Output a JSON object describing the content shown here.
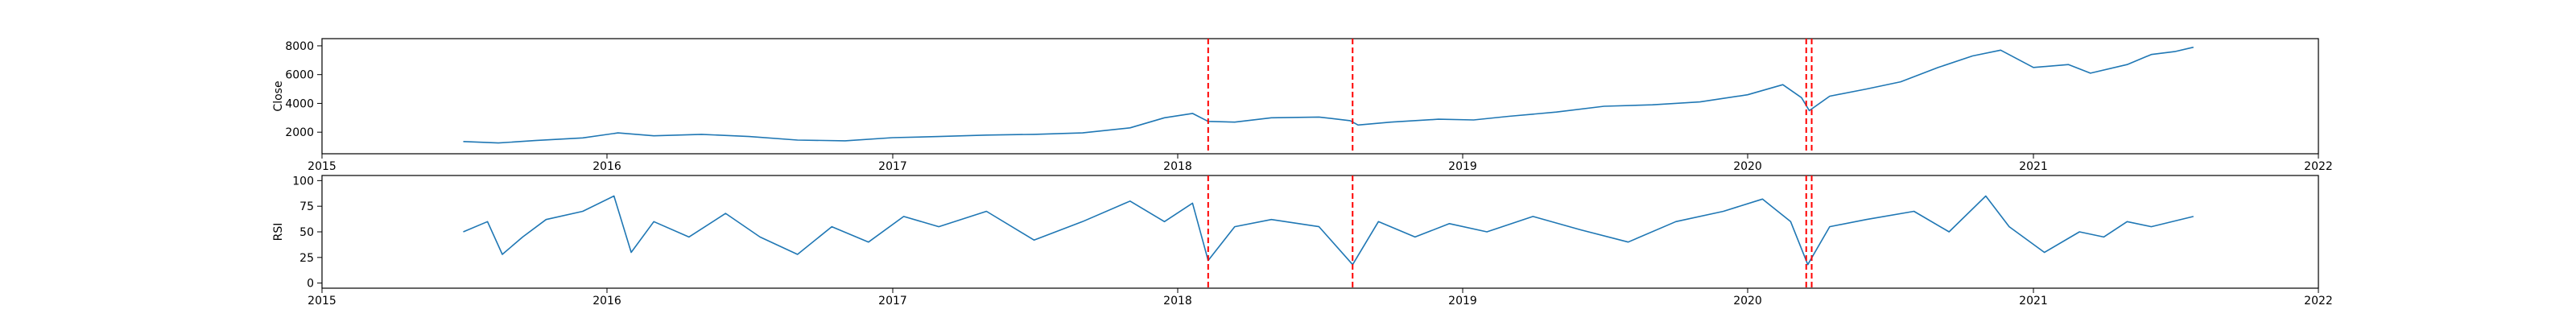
{
  "chart_data": [
    {
      "type": "line",
      "ylabel": "Close",
      "xlim": [
        "2015-01-01",
        "2022-01-01"
      ],
      "ylim": [
        500,
        8500
      ],
      "x_ticks": [
        "2015",
        "2016",
        "2017",
        "2018",
        "2019",
        "2020",
        "2021",
        "2022"
      ],
      "y_ticks": [
        2000,
        4000,
        6000,
        8000
      ],
      "grid": false,
      "series": [
        {
          "color": "#1f77b4",
          "points": [
            [
              "2015-07-01",
              1350
            ],
            [
              "2015-08-15",
              1250
            ],
            [
              "2015-10-01",
              1420
            ],
            [
              "2015-12-01",
              1600
            ],
            [
              "2016-01-15",
              1950
            ],
            [
              "2016-03-01",
              1750
            ],
            [
              "2016-05-01",
              1850
            ],
            [
              "2016-07-01",
              1700
            ],
            [
              "2016-09-01",
              1450
            ],
            [
              "2016-11-01",
              1400
            ],
            [
              "2017-01-01",
              1620
            ],
            [
              "2017-03-01",
              1700
            ],
            [
              "2017-05-01",
              1800
            ],
            [
              "2017-07-01",
              1850
            ],
            [
              "2017-09-01",
              1950
            ],
            [
              "2017-11-01",
              2300
            ],
            [
              "2017-12-15",
              3000
            ],
            [
              "2018-01-20",
              3300
            ],
            [
              "2018-02-09",
              2750
            ],
            [
              "2018-03-15",
              2700
            ],
            [
              "2018-05-01",
              3000
            ],
            [
              "2018-07-01",
              3050
            ],
            [
              "2018-08-10",
              2800
            ],
            [
              "2018-08-20",
              2500
            ],
            [
              "2018-10-01",
              2700
            ],
            [
              "2018-12-01",
              2900
            ],
            [
              "2019-01-15",
              2850
            ],
            [
              "2019-03-01",
              3100
            ],
            [
              "2019-05-01",
              3400
            ],
            [
              "2019-07-01",
              3800
            ],
            [
              "2019-09-01",
              3900
            ],
            [
              "2019-11-01",
              4100
            ],
            [
              "2020-01-01",
              4600
            ],
            [
              "2020-02-15",
              5300
            ],
            [
              "2020-03-10",
              4400
            ],
            [
              "2020-03-20",
              3500
            ],
            [
              "2020-04-15",
              4500
            ],
            [
              "2020-06-01",
              5000
            ],
            [
              "2020-07-15",
              5500
            ],
            [
              "2020-09-01",
              6500
            ],
            [
              "2020-10-15",
              7300
            ],
            [
              "2020-11-20",
              7700
            ],
            [
              "2021-01-01",
              6500
            ],
            [
              "2021-02-15",
              6700
            ],
            [
              "2021-03-15",
              6100
            ],
            [
              "2021-05-01",
              6700
            ],
            [
              "2021-06-01",
              7400
            ],
            [
              "2021-07-01",
              7600
            ],
            [
              "2021-07-25",
              7900
            ]
          ]
        }
      ],
      "markers": [
        "2018-02-09",
        "2018-08-13",
        "2020-03-16",
        "2020-03-23"
      ],
      "marker_color": "#ff0000"
    },
    {
      "type": "line",
      "ylabel": "RSI",
      "xlim": [
        "2015-01-01",
        "2022-01-01"
      ],
      "ylim": [
        -5,
        105
      ],
      "x_ticks": [
        "2015",
        "2016",
        "2017",
        "2018",
        "2019",
        "2020",
        "2021",
        "2022"
      ],
      "y_ticks": [
        0,
        25,
        50,
        75,
        100
      ],
      "grid": false,
      "series": [
        {
          "color": "#1f77b4",
          "points": [
            [
              "2015-07-01",
              50
            ],
            [
              "2015-08-01",
              60
            ],
            [
              "2015-08-20",
              28
            ],
            [
              "2015-09-15",
              45
            ],
            [
              "2015-10-15",
              62
            ],
            [
              "2015-12-01",
              70
            ],
            [
              "2016-01-10",
              85
            ],
            [
              "2016-02-01",
              30
            ],
            [
              "2016-03-01",
              60
            ],
            [
              "2016-04-15",
              45
            ],
            [
              "2016-06-01",
              68
            ],
            [
              "2016-07-15",
              45
            ],
            [
              "2016-09-01",
              28
            ],
            [
              "2016-10-15",
              55
            ],
            [
              "2016-12-01",
              40
            ],
            [
              "2017-01-15",
              65
            ],
            [
              "2017-03-01",
              55
            ],
            [
              "2017-05-01",
              70
            ],
            [
              "2017-07-01",
              42
            ],
            [
              "2017-09-01",
              60
            ],
            [
              "2017-11-01",
              80
            ],
            [
              "2017-12-15",
              60
            ],
            [
              "2018-01-20",
              78
            ],
            [
              "2018-02-09",
              22
            ],
            [
              "2018-03-15",
              55
            ],
            [
              "2018-05-01",
              62
            ],
            [
              "2018-07-01",
              55
            ],
            [
              "2018-08-13",
              18
            ],
            [
              "2018-09-15",
              60
            ],
            [
              "2018-11-01",
              45
            ],
            [
              "2018-12-15",
              58
            ],
            [
              "2019-02-01",
              50
            ],
            [
              "2019-04-01",
              65
            ],
            [
              "2019-06-01",
              52
            ],
            [
              "2019-08-01",
              40
            ],
            [
              "2019-10-01",
              60
            ],
            [
              "2019-12-01",
              70
            ],
            [
              "2020-01-20",
              82
            ],
            [
              "2020-02-25",
              60
            ],
            [
              "2020-03-18",
              18
            ],
            [
              "2020-04-15",
              55
            ],
            [
              "2020-06-01",
              62
            ],
            [
              "2020-08-01",
              70
            ],
            [
              "2020-09-15",
              50
            ],
            [
              "2020-11-01",
              85
            ],
            [
              "2020-12-01",
              55
            ],
            [
              "2021-01-15",
              30
            ],
            [
              "2021-03-01",
              50
            ],
            [
              "2021-04-01",
              45
            ],
            [
              "2021-05-01",
              60
            ],
            [
              "2021-06-01",
              55
            ],
            [
              "2021-07-25",
              65
            ]
          ]
        }
      ],
      "markers": [
        "2018-02-09",
        "2018-08-13",
        "2020-03-16",
        "2020-03-23"
      ],
      "marker_color": "#ff0000"
    }
  ]
}
